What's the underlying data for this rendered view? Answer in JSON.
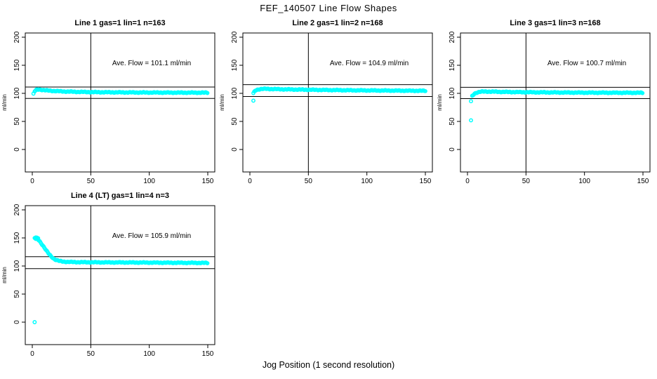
{
  "figure_title": "FEF_140507  Line Flow Shapes",
  "xlabel": "Jog Position (1 second resolution)",
  "colors": {
    "points": "#00ffff",
    "axis": "#000000",
    "background": "#ffffff",
    "text": "#000000"
  },
  "chart_data": [
    {
      "type": "scatter",
      "title": "Line 1 gas=1 lin=1 n=163",
      "n": 163,
      "annotation": "Ave. Flow =  101.1  ml/min",
      "ave_flow": 101.1,
      "ylabel": "ml/min",
      "xlabel": "",
      "x_ticks": [
        0,
        50,
        100,
        150
      ],
      "y_ticks": [
        0,
        50,
        100,
        150,
        200
      ],
      "xlim": [
        -6,
        156
      ],
      "ylim": [
        -40,
        207.5
      ],
      "ref_lines_y": [
        111.2,
        91.0
      ],
      "ref_line_x": 50,
      "marker": "open-circle",
      "grid": false,
      "profile": [
        [
          2,
          103.5
        ],
        [
          3,
          105.5
        ],
        [
          4,
          106.5
        ],
        [
          6,
          107
        ],
        [
          9,
          106
        ],
        [
          13,
          105
        ],
        [
          18,
          104.3
        ],
        [
          25,
          103.5
        ],
        [
          35,
          102.8
        ],
        [
          50,
          102.2
        ],
        [
          70,
          101.8
        ],
        [
          95,
          101.5
        ],
        [
          120,
          101.3
        ],
        [
          150,
          101.2
        ]
      ],
      "outliers": [
        [
          1,
          99.5
        ]
      ]
    },
    {
      "type": "scatter",
      "title": "Line 2 gas=1 lin=2 n=168",
      "n": 168,
      "annotation": "Ave. Flow =  104.9  ml/min",
      "ave_flow": 104.9,
      "ylabel": "ml/min",
      "xlabel": "",
      "x_ticks": [
        0,
        50,
        100,
        150
      ],
      "y_ticks": [
        0,
        50,
        100,
        150,
        200
      ],
      "xlim": [
        -6,
        156
      ],
      "ylim": [
        -40,
        207.5
      ],
      "ref_lines_y": [
        115.4,
        94.4
      ],
      "ref_line_x": 50,
      "marker": "open-circle",
      "grid": false,
      "profile": [
        [
          3,
          100
        ],
        [
          4,
          103.5
        ],
        [
          5,
          105.5
        ],
        [
          7,
          107
        ],
        [
          10,
          107.8
        ],
        [
          14,
          108
        ],
        [
          20,
          107.6
        ],
        [
          30,
          107.1
        ],
        [
          45,
          106.6
        ],
        [
          65,
          106
        ],
        [
          90,
          105.4
        ],
        [
          115,
          105
        ],
        [
          135,
          104.7
        ],
        [
          150,
          104.5
        ]
      ],
      "outliers": [
        [
          3,
          87
        ]
      ]
    },
    {
      "type": "scatter",
      "title": "Line 3 gas=1 lin=3 n=168",
      "n": 168,
      "annotation": "Ave. Flow =  100.7  ml/min",
      "ave_flow": 100.7,
      "ylabel": "ml/min",
      "xlabel": "",
      "x_ticks": [
        0,
        50,
        100,
        150
      ],
      "y_ticks": [
        0,
        50,
        100,
        150,
        200
      ],
      "xlim": [
        -6,
        156
      ],
      "ylim": [
        -40,
        207.5
      ],
      "ref_lines_y": [
        110.8,
        90.6
      ],
      "ref_line_x": 50,
      "marker": "open-circle",
      "grid": false,
      "profile": [
        [
          4,
          95
        ],
        [
          5,
          97.5
        ],
        [
          6,
          99.5
        ],
        [
          8,
          101.5
        ],
        [
          11,
          102.8
        ],
        [
          15,
          103.2
        ],
        [
          22,
          103
        ],
        [
          32,
          102.5
        ],
        [
          50,
          102
        ],
        [
          75,
          101.6
        ],
        [
          100,
          101.3
        ],
        [
          125,
          101.1
        ],
        [
          150,
          101
        ]
      ],
      "outliers": [
        [
          3,
          86
        ],
        [
          3,
          52
        ]
      ]
    },
    {
      "type": "scatter",
      "title": "Line 4 (LT) gas=1 lin=4 n=3",
      "n": 3,
      "annotation": "Ave. Flow =  105.9  ml/min",
      "ave_flow": 105.9,
      "ylabel": "ml/min",
      "xlabel": "",
      "x_ticks": [
        0,
        50,
        100,
        150
      ],
      "y_ticks": [
        0,
        50,
        100,
        150,
        200
      ],
      "xlim": [
        -6,
        156
      ],
      "ylim": [
        -40,
        207.5
      ],
      "ref_lines_y": [
        116.5,
        95.3
      ],
      "ref_line_x": 50,
      "marker": "open-circle",
      "grid": false,
      "profile": [
        [
          2,
          150
        ],
        [
          4,
          149
        ],
        [
          6,
          145
        ],
        [
          8,
          139.5
        ],
        [
          10,
          133.5
        ],
        [
          12,
          127.5
        ],
        [
          14,
          122
        ],
        [
          16,
          117.5
        ],
        [
          18,
          113.5
        ],
        [
          20,
          111
        ],
        [
          23,
          109
        ],
        [
          26,
          108
        ],
        [
          30,
          107.3
        ],
        [
          40,
          106.8
        ],
        [
          60,
          106.5
        ],
        [
          90,
          106.2
        ],
        [
          120,
          105.8
        ],
        [
          150,
          105.5
        ]
      ],
      "outliers": [
        [
          2,
          0
        ],
        [
          3,
          150.8
        ],
        [
          3,
          148.2
        ],
        [
          4,
          150.5
        ],
        [
          5,
          149.5
        ]
      ]
    }
  ]
}
